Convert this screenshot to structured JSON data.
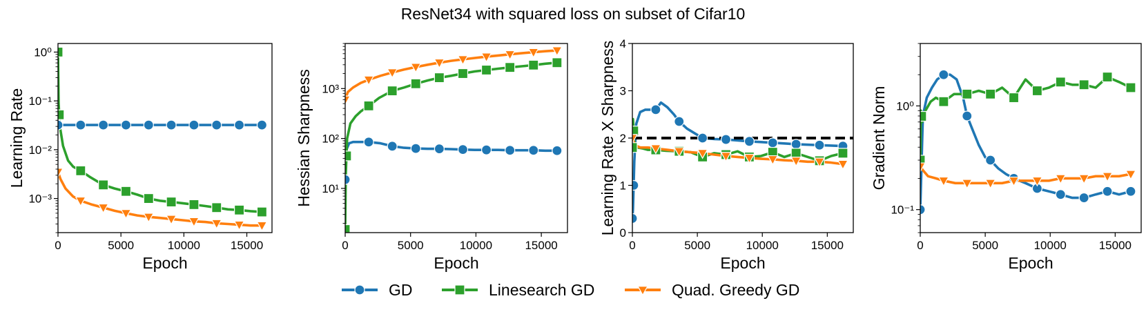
{
  "figure_title": "ResNet34 with squared loss on subset of Cifar10",
  "colors": {
    "gd": "#1f77b4",
    "linesearch": "#2ca02c",
    "quad": "#ff7f0e",
    "reference": "#000000"
  },
  "legend": [
    {
      "name": "GD",
      "marker": "circle",
      "color": "#1f77b4"
    },
    {
      "name": "Linesearch GD",
      "marker": "square",
      "color": "#2ca02c"
    },
    {
      "name": "Quad. Greedy GD",
      "marker": "triangle-down",
      "color": "#ff7f0e"
    }
  ],
  "chart_data": [
    {
      "type": "line",
      "title": "",
      "xlabel": "Epoch",
      "ylabel": "Learning Rate",
      "yscale": "log",
      "xlim": [
        0,
        17000
      ],
      "ylim": [
        0.0002,
        1.5
      ],
      "xticks": [
        0,
        5000,
        10000,
        15000
      ],
      "xtick_labels": [
        "0",
        "5000",
        "10000",
        "15000"
      ],
      "yticks": [
        0.001,
        0.01,
        0.1,
        1
      ],
      "ytick_labels": [
        "10⁻³",
        "10⁻²",
        "10⁻¹",
        "10⁰"
      ],
      "series": [
        {
          "name": "GD",
          "x": [
            0,
            300,
            1800,
            3600,
            5400,
            7200,
            9000,
            10800,
            12600,
            14400,
            16200
          ],
          "y": [
            0.032,
            0.032,
            0.032,
            0.032,
            0.032,
            0.032,
            0.032,
            0.032,
            0.032,
            0.032,
            0.032
          ],
          "markers_x": [
            0,
            1800,
            3600,
            5400,
            7200,
            9000,
            10800,
            12600,
            14400,
            16200
          ]
        },
        {
          "name": "Linesearch GD",
          "x": [
            0,
            50,
            150,
            400,
            800,
            1200,
            1800,
            2600,
            3600,
            4500,
            5400,
            6300,
            7200,
            8100,
            9000,
            9900,
            10800,
            11700,
            12600,
            13500,
            14400,
            15300,
            16200
          ],
          "y": [
            1.0,
            0.09,
            0.03,
            0.012,
            0.006,
            0.0045,
            0.0037,
            0.0027,
            0.0019,
            0.0016,
            0.0014,
            0.0012,
            0.001,
            0.0009,
            0.00085,
            0.0008,
            0.00075,
            0.0007,
            0.00065,
            0.0006,
            0.00058,
            0.00055,
            0.00053
          ],
          "markers_x": [
            0,
            100,
            1800,
            3600,
            5400,
            7200,
            9000,
            10800,
            12600,
            14400,
            16200
          ]
        },
        {
          "name": "Quad. Greedy GD",
          "x": [
            0,
            200,
            600,
            1200,
            1800,
            2700,
            3600,
            4500,
            5400,
            6300,
            7200,
            8100,
            9000,
            9900,
            10800,
            11700,
            12600,
            13500,
            14400,
            15300,
            16200
          ],
          "y": [
            0.0035,
            0.0025,
            0.0016,
            0.0011,
            0.0009,
            0.00075,
            0.00065,
            0.00056,
            0.0005,
            0.00045,
            0.00042,
            0.0004,
            0.00038,
            0.00036,
            0.00034,
            0.00033,
            0.00031,
            0.0003,
            0.00029,
            0.00028,
            0.00028
          ],
          "markers_x": [
            0,
            1800,
            3600,
            5400,
            7200,
            9000,
            10800,
            12600,
            14400,
            16200
          ]
        }
      ]
    },
    {
      "type": "line",
      "title": "",
      "xlabel": "Epoch",
      "ylabel": "Hessian Sharpness",
      "yscale": "log",
      "xlim": [
        0,
        17000
      ],
      "ylim": [
        1.3,
        8000
      ],
      "xticks": [
        0,
        5000,
        10000,
        15000
      ],
      "xtick_labels": [
        "0",
        "5000",
        "10000",
        "15000"
      ],
      "yticks": [
        10,
        100,
        1000
      ],
      "ytick_labels": [
        "10¹",
        "10²",
        "10³"
      ],
      "series": [
        {
          "name": "GD",
          "x": [
            0,
            100,
            300,
            600,
            1000,
            1800,
            2700,
            3600,
            4500,
            5400,
            6300,
            7200,
            8100,
            9000,
            9900,
            10800,
            11700,
            12600,
            13500,
            14400,
            15300,
            16200
          ],
          "y": [
            15,
            60,
            80,
            85,
            85,
            85,
            80,
            70,
            65,
            63,
            62,
            62,
            61,
            60,
            59,
            59,
            59,
            58,
            58,
            58,
            57,
            57
          ],
          "markers_x": [
            0,
            1800,
            3600,
            5400,
            7200,
            9000,
            10800,
            12600,
            14400,
            16200
          ]
        },
        {
          "name": "Linesearch GD",
          "x": [
            0,
            50,
            150,
            400,
            800,
            1200,
            1800,
            2600,
            3600,
            4500,
            5400,
            6300,
            7200,
            8100,
            9000,
            9900,
            10800,
            11700,
            12600,
            13500,
            14400,
            15300,
            16200
          ],
          "y": [
            1.5,
            20,
            100,
            200,
            280,
            350,
            450,
            650,
            900,
            1050,
            1250,
            1450,
            1650,
            1800,
            2000,
            2200,
            2350,
            2500,
            2650,
            2800,
            2950,
            3150,
            3300
          ],
          "markers_x": [
            0,
            100,
            1800,
            3600,
            5400,
            7200,
            9000,
            10800,
            12600,
            14400,
            16200
          ]
        },
        {
          "name": "Quad. Greedy GD",
          "x": [
            0,
            200,
            600,
            1200,
            1800,
            2700,
            3600,
            4500,
            5400,
            6300,
            7200,
            8100,
            9000,
            9900,
            10800,
            11700,
            12600,
            13500,
            14400,
            15300,
            16200
          ],
          "y": [
            600,
            850,
            1050,
            1300,
            1500,
            1800,
            2100,
            2400,
            2700,
            3000,
            3300,
            3600,
            3850,
            4100,
            4350,
            4600,
            4850,
            5100,
            5350,
            5600,
            5800
          ],
          "markers_x": [
            0,
            1800,
            3600,
            5400,
            7200,
            9000,
            10800,
            12600,
            14400,
            16200
          ]
        }
      ]
    },
    {
      "type": "line",
      "title": "",
      "xlabel": "Epoch",
      "ylabel": "Learning Rate X Sharpness",
      "yscale": "linear",
      "xlim": [
        0,
        17000
      ],
      "ylim": [
        0,
        4
      ],
      "xticks": [
        0,
        5000,
        10000,
        15000
      ],
      "xtick_labels": [
        "0",
        "5000",
        "10000",
        "15000"
      ],
      "yticks": [
        0,
        1,
        2,
        3,
        4
      ],
      "ytick_labels": [
        "0",
        "1",
        "2",
        "3",
        "4"
      ],
      "reference_line": {
        "y": 2,
        "style": "dashed"
      },
      "series": [
        {
          "name": "GD",
          "x": [
            0,
            50,
            150,
            300,
            600,
            1000,
            1500,
            1800,
            2200,
            2700,
            3200,
            3600,
            4200,
            4800,
            5400,
            6300,
            7200,
            8100,
            9000,
            10800,
            12600,
            14400,
            16200
          ],
          "y": [
            0.3,
            0.5,
            1.5,
            2.3,
            2.55,
            2.6,
            2.6,
            2.6,
            2.75,
            2.65,
            2.5,
            2.35,
            2.2,
            2.1,
            2.0,
            1.98,
            1.97,
            1.95,
            1.93,
            1.9,
            1.87,
            1.85,
            1.83
          ],
          "markers_x": [
            0,
            100,
            1800,
            3600,
            5400,
            7200,
            9000,
            10800,
            12600,
            14400,
            16200
          ]
        },
        {
          "name": "Linesearch GD",
          "x": [
            0,
            50,
            150,
            400,
            800,
            1200,
            1800,
            2600,
            3600,
            4500,
            5400,
            6300,
            7200,
            8100,
            9000,
            9900,
            10800,
            11700,
            12600,
            13500,
            14400,
            15300,
            16200
          ],
          "y": [
            1.8,
            2.4,
            1.9,
            1.8,
            1.78,
            1.75,
            1.75,
            1.73,
            1.72,
            1.7,
            1.6,
            1.68,
            1.65,
            1.72,
            1.6,
            1.62,
            1.7,
            1.6,
            1.68,
            1.6,
            1.52,
            1.62,
            1.68
          ],
          "markers_x": [
            0,
            100,
            1800,
            3600,
            5400,
            7200,
            9000,
            10800,
            12600,
            14400,
            16200
          ]
        },
        {
          "name": "Quad. Greedy GD",
          "x": [
            0,
            200,
            600,
            1200,
            1800,
            2700,
            3600,
            4500,
            5400,
            6300,
            7200,
            8100,
            9000,
            9900,
            10800,
            11700,
            12600,
            13500,
            14400,
            15300,
            16200
          ],
          "y": [
            2.0,
            1.85,
            1.8,
            1.8,
            1.78,
            1.75,
            1.72,
            1.7,
            1.68,
            1.65,
            1.62,
            1.6,
            1.58,
            1.56,
            1.55,
            1.53,
            1.52,
            1.5,
            1.5,
            1.48,
            1.45
          ],
          "markers_x": [
            0,
            1800,
            3600,
            5400,
            7200,
            9000,
            10800,
            12600,
            14400,
            16200
          ]
        }
      ]
    },
    {
      "type": "line",
      "title": "",
      "xlabel": "Epoch",
      "ylabel": "Gradient Norm",
      "yscale": "log",
      "xlim": [
        0,
        17000
      ],
      "ylim": [
        0.06,
        4
      ],
      "xticks": [
        0,
        5000,
        10000,
        15000
      ],
      "xtick_labels": [
        "0",
        "5000",
        "10000",
        "15000"
      ],
      "yticks": [
        0.1,
        1
      ],
      "ytick_labels": [
        "10⁻¹",
        "10⁰"
      ],
      "series": [
        {
          "name": "GD",
          "x": [
            0,
            200,
            500,
            900,
            1300,
            1800,
            2300,
            2800,
            3300,
            3600,
            4000,
            4500,
            5000,
            5400,
            6000,
            6600,
            7200,
            8100,
            9000,
            9900,
            10800,
            11700,
            12600,
            13500,
            14400,
            15300,
            16200
          ],
          "y": [
            0.1,
            0.8,
            1.2,
            1.5,
            1.8,
            2.0,
            2.0,
            1.8,
            1.2,
            0.8,
            0.6,
            0.42,
            0.32,
            0.3,
            0.25,
            0.22,
            0.2,
            0.18,
            0.16,
            0.15,
            0.14,
            0.13,
            0.13,
            0.14,
            0.15,
            0.14,
            0.15
          ],
          "markers_x": [
            0,
            1800,
            3600,
            5400,
            7200,
            9000,
            10800,
            12600,
            14400,
            16200
          ]
        },
        {
          "name": "Linesearch GD",
          "x": [
            0,
            50,
            150,
            400,
            800,
            1200,
            1800,
            2600,
            3600,
            4500,
            5400,
            6300,
            7200,
            8100,
            9000,
            9900,
            10800,
            11700,
            12600,
            13500,
            14400,
            15300,
            16200
          ],
          "y": [
            0.3,
            0.9,
            0.7,
            0.9,
            1.1,
            1.2,
            1.1,
            1.3,
            1.3,
            1.4,
            1.3,
            1.5,
            1.2,
            1.8,
            1.4,
            1.5,
            1.7,
            1.6,
            1.6,
            1.5,
            1.9,
            1.7,
            1.5
          ],
          "markers_x": [
            0,
            100,
            1800,
            3600,
            5400,
            7200,
            9000,
            10800,
            12600,
            14400,
            16200
          ]
        },
        {
          "name": "Quad. Greedy GD",
          "x": [
            0,
            200,
            600,
            1200,
            1800,
            2700,
            3600,
            4500,
            5400,
            6300,
            7200,
            8100,
            9000,
            9900,
            10800,
            11700,
            12600,
            13500,
            14400,
            15300,
            16200
          ],
          "y": [
            0.26,
            0.24,
            0.21,
            0.2,
            0.19,
            0.18,
            0.18,
            0.18,
            0.18,
            0.18,
            0.19,
            0.19,
            0.19,
            0.19,
            0.2,
            0.2,
            0.2,
            0.21,
            0.21,
            0.21,
            0.22
          ],
          "markers_x": [
            0,
            1800,
            3600,
            5400,
            7200,
            9000,
            10800,
            12600,
            14400,
            16200
          ]
        }
      ]
    }
  ]
}
